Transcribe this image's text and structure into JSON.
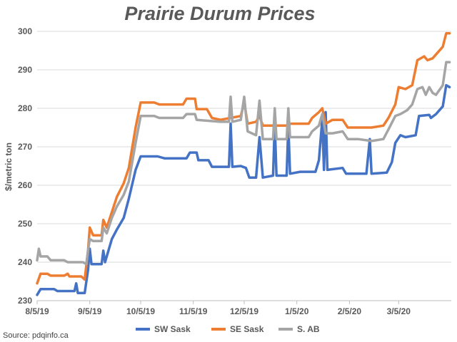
{
  "chart_data": {
    "type": "line",
    "title": "Prairie Durum Prices",
    "ylabel": "$/metric ton",
    "xlabel": "",
    "ylim": [
      230,
      300
    ],
    "yticks": [
      230,
      240,
      250,
      260,
      270,
      280,
      290,
      300
    ],
    "xlim": [
      "2019-08-05",
      "2020-04-05"
    ],
    "xticks": [
      {
        "date": "2019-08-05",
        "label": "8/5/19"
      },
      {
        "date": "2019-09-05",
        "label": "9/5/19"
      },
      {
        "date": "2019-10-05",
        "label": "10/5/19"
      },
      {
        "date": "2019-11-05",
        "label": "11/5/19"
      },
      {
        "date": "2019-12-05",
        "label": "12/5/19"
      },
      {
        "date": "2020-01-05",
        "label": "1/5/20"
      },
      {
        "date": "2020-02-05",
        "label": "2/5/20"
      },
      {
        "date": "2020-03-05",
        "label": "3/5/20"
      }
    ],
    "grid": "horizontal",
    "legend": "bottom",
    "series": [
      {
        "name": "SW Sask",
        "color": "#4472C4",
        "points": [
          [
            "2019-08-05",
            231.5
          ],
          [
            "2019-08-07",
            233.0
          ],
          [
            "2019-08-15",
            233.0
          ],
          [
            "2019-08-17",
            232.5
          ],
          [
            "2019-08-27",
            232.5
          ],
          [
            "2019-08-28",
            234.5
          ],
          [
            "2019-08-29",
            232.0
          ],
          [
            "2019-09-02",
            232.0
          ],
          [
            "2019-09-04",
            238.0
          ],
          [
            "2019-09-05",
            243.5
          ],
          [
            "2019-09-06",
            239.5
          ],
          [
            "2019-09-12",
            239.5
          ],
          [
            "2019-09-13",
            243.0
          ],
          [
            "2019-09-14",
            240.0
          ],
          [
            "2019-09-18",
            246.0
          ],
          [
            "2019-09-21",
            248.5
          ],
          [
            "2019-09-25",
            251.5
          ],
          [
            "2019-09-28",
            256.5
          ],
          [
            "2019-10-02",
            264.0
          ],
          [
            "2019-10-05",
            267.5
          ],
          [
            "2019-10-15",
            267.5
          ],
          [
            "2019-10-19",
            267.0
          ],
          [
            "2019-11-01",
            267.0
          ],
          [
            "2019-11-03",
            268.5
          ],
          [
            "2019-11-07",
            268.5
          ],
          [
            "2019-11-08",
            266.5
          ],
          [
            "2019-11-14",
            266.5
          ],
          [
            "2019-11-16",
            264.8
          ],
          [
            "2019-11-26",
            264.8
          ],
          [
            "2019-11-27",
            276.0
          ],
          [
            "2019-11-28",
            264.8
          ],
          [
            "2019-12-03",
            265.0
          ],
          [
            "2019-12-06",
            264.5
          ],
          [
            "2019-12-08",
            262.0
          ],
          [
            "2019-12-12",
            262.0
          ],
          [
            "2019-12-14",
            272.5
          ],
          [
            "2019-12-16",
            262.0
          ],
          [
            "2019-12-22",
            262.5
          ],
          [
            "2019-12-23",
            276.0
          ],
          [
            "2019-12-24",
            262.5
          ],
          [
            "2019-12-30",
            262.5
          ],
          [
            "2019-12-31",
            275.5
          ],
          [
            "2020-01-01",
            263.0
          ],
          [
            "2020-01-07",
            263.5
          ],
          [
            "2020-01-16",
            263.5
          ],
          [
            "2020-01-18",
            266.5
          ],
          [
            "2020-01-20",
            277.0
          ],
          [
            "2020-01-21",
            264.0
          ],
          [
            "2020-01-22",
            279.0
          ],
          [
            "2020-01-23",
            264.0
          ],
          [
            "2020-02-01",
            264.5
          ],
          [
            "2020-02-03",
            263.0
          ],
          [
            "2020-02-15",
            263.0
          ],
          [
            "2020-02-17",
            272.0
          ],
          [
            "2020-02-18",
            263.0
          ],
          [
            "2020-02-27",
            263.3
          ],
          [
            "2020-03-01",
            266.0
          ],
          [
            "2020-03-03",
            271.0
          ],
          [
            "2020-03-06",
            273.0
          ],
          [
            "2020-03-09",
            272.5
          ],
          [
            "2020-03-15",
            273.0
          ],
          [
            "2020-03-17",
            278.0
          ],
          [
            "2020-03-23",
            278.3
          ],
          [
            "2020-03-24",
            277.5
          ],
          [
            "2020-03-27",
            278.5
          ],
          [
            "2020-03-31",
            280.5
          ],
          [
            "2020-04-02",
            286.0
          ],
          [
            "2020-04-04",
            285.5
          ]
        ]
      },
      {
        "name": "SE Sask",
        "color": "#ED7D31",
        "points": [
          [
            "2019-08-05",
            234.5
          ],
          [
            "2019-08-07",
            237.0
          ],
          [
            "2019-08-11",
            237.0
          ],
          [
            "2019-08-13",
            236.5
          ],
          [
            "2019-08-21",
            236.5
          ],
          [
            "2019-08-23",
            237.0
          ],
          [
            "2019-08-24",
            236.3
          ],
          [
            "2019-08-31",
            236.3
          ],
          [
            "2019-09-02",
            235.5
          ],
          [
            "2019-09-04",
            243.0
          ],
          [
            "2019-09-05",
            249.0
          ],
          [
            "2019-09-07",
            247.0
          ],
          [
            "2019-09-12",
            247.0
          ],
          [
            "2019-09-13",
            251.0
          ],
          [
            "2019-09-15",
            249.0
          ],
          [
            "2019-09-18",
            253.0
          ],
          [
            "2019-09-21",
            257.0
          ],
          [
            "2019-09-25",
            260.5
          ],
          [
            "2019-09-28",
            264.5
          ],
          [
            "2019-10-02",
            275.0
          ],
          [
            "2019-10-05",
            281.5
          ],
          [
            "2019-10-13",
            281.5
          ],
          [
            "2019-10-16",
            281.0
          ],
          [
            "2019-10-30",
            281.0
          ],
          [
            "2019-11-01",
            282.5
          ],
          [
            "2019-11-06",
            282.5
          ],
          [
            "2019-11-07",
            279.8
          ],
          [
            "2019-11-13",
            279.8
          ],
          [
            "2019-11-16",
            277.5
          ],
          [
            "2019-11-21",
            277.0
          ],
          [
            "2019-11-27",
            277.5
          ],
          [
            "2019-12-03",
            278.0
          ],
          [
            "2019-12-05",
            281.5
          ],
          [
            "2019-12-07",
            276.0
          ],
          [
            "2019-12-12",
            276.5
          ],
          [
            "2019-12-14",
            278.0
          ],
          [
            "2019-12-16",
            275.5
          ],
          [
            "2019-12-23",
            275.5
          ],
          [
            "2019-12-30",
            275.5
          ],
          [
            "2020-01-01",
            276.0
          ],
          [
            "2020-01-12",
            276.0
          ],
          [
            "2020-01-14",
            277.5
          ],
          [
            "2020-01-18",
            279.0
          ],
          [
            "2020-01-20",
            280.0
          ],
          [
            "2020-01-22",
            276.0
          ],
          [
            "2020-01-26",
            277.0
          ],
          [
            "2020-02-01",
            277.0
          ],
          [
            "2020-02-04",
            275.0
          ],
          [
            "2020-02-10",
            275.0
          ],
          [
            "2020-02-18",
            275.0
          ],
          [
            "2020-02-25",
            275.5
          ],
          [
            "2020-02-28",
            277.5
          ],
          [
            "2020-03-03",
            281.0
          ],
          [
            "2020-03-05",
            285.5
          ],
          [
            "2020-03-09",
            285.0
          ],
          [
            "2020-03-13",
            286.0
          ],
          [
            "2020-03-16",
            292.5
          ],
          [
            "2020-03-20",
            293.5
          ],
          [
            "2020-03-22",
            292.5
          ],
          [
            "2020-03-25",
            293.0
          ],
          [
            "2020-03-28",
            294.5
          ],
          [
            "2020-03-31",
            296.0
          ],
          [
            "2020-04-02",
            299.5
          ],
          [
            "2020-04-04",
            299.5
          ]
        ]
      },
      {
        "name": "S. AB",
        "color": "#A5A5A5",
        "points": [
          [
            "2019-08-05",
            240.5
          ],
          [
            "2019-08-06",
            243.5
          ],
          [
            "2019-08-07",
            241.5
          ],
          [
            "2019-08-11",
            241.5
          ],
          [
            "2019-08-13",
            240.5
          ],
          [
            "2019-08-21",
            240.5
          ],
          [
            "2019-08-23",
            240.0
          ],
          [
            "2019-09-01",
            240.0
          ],
          [
            "2019-09-03",
            239.5
          ],
          [
            "2019-09-04",
            243.0
          ],
          [
            "2019-09-05",
            246.0
          ],
          [
            "2019-09-07",
            245.5
          ],
          [
            "2019-09-12",
            245.5
          ],
          [
            "2019-09-13",
            249.0
          ],
          [
            "2019-09-15",
            247.5
          ],
          [
            "2019-09-18",
            251.5
          ],
          [
            "2019-09-21",
            254.5
          ],
          [
            "2019-09-25",
            257.5
          ],
          [
            "2019-09-28",
            261.0
          ],
          [
            "2019-10-02",
            271.0
          ],
          [
            "2019-10-05",
            278.0
          ],
          [
            "2019-10-13",
            278.0
          ],
          [
            "2019-10-16",
            277.5
          ],
          [
            "2019-10-30",
            277.5
          ],
          [
            "2019-11-01",
            278.5
          ],
          [
            "2019-11-06",
            278.5
          ],
          [
            "2019-11-07",
            277.0
          ],
          [
            "2019-11-21",
            276.5
          ],
          [
            "2019-11-26",
            276.5
          ],
          [
            "2019-11-27",
            283.0
          ],
          [
            "2019-11-28",
            276.5
          ],
          [
            "2019-12-03",
            277.0
          ],
          [
            "2019-12-05",
            283.0
          ],
          [
            "2019-12-07",
            274.0
          ],
          [
            "2019-12-12",
            273.0
          ],
          [
            "2019-12-14",
            282.0
          ],
          [
            "2019-12-16",
            272.0
          ],
          [
            "2019-12-22",
            272.0
          ],
          [
            "2019-12-23",
            280.0
          ],
          [
            "2019-12-24",
            272.0
          ],
          [
            "2019-12-30",
            272.0
          ],
          [
            "2019-12-31",
            280.0
          ],
          [
            "2020-01-01",
            272.5
          ],
          [
            "2020-01-12",
            272.5
          ],
          [
            "2020-01-14",
            274.0
          ],
          [
            "2020-01-18",
            275.5
          ],
          [
            "2020-01-20",
            278.5
          ],
          [
            "2020-01-22",
            273.5
          ],
          [
            "2020-01-26",
            273.5
          ],
          [
            "2020-02-01",
            274.0
          ],
          [
            "2020-02-04",
            272.0
          ],
          [
            "2020-02-10",
            272.0
          ],
          [
            "2020-02-18",
            271.5
          ],
          [
            "2020-02-25",
            272.0
          ],
          [
            "2020-02-28",
            274.5
          ],
          [
            "2020-03-03",
            278.0
          ],
          [
            "2020-03-06",
            278.5
          ],
          [
            "2020-03-10",
            279.5
          ],
          [
            "2020-03-13",
            281.0
          ],
          [
            "2020-03-16",
            285.0
          ],
          [
            "2020-03-19",
            285.5
          ],
          [
            "2020-03-21",
            283.5
          ],
          [
            "2020-03-23",
            285.5
          ],
          [
            "2020-03-25",
            284.0
          ],
          [
            "2020-03-27",
            283.5
          ],
          [
            "2020-03-31",
            286.0
          ],
          [
            "2020-04-02",
            292.0
          ],
          [
            "2020-04-04",
            292.0
          ]
        ]
      }
    ]
  },
  "source": "Source: pdqinfo.ca"
}
